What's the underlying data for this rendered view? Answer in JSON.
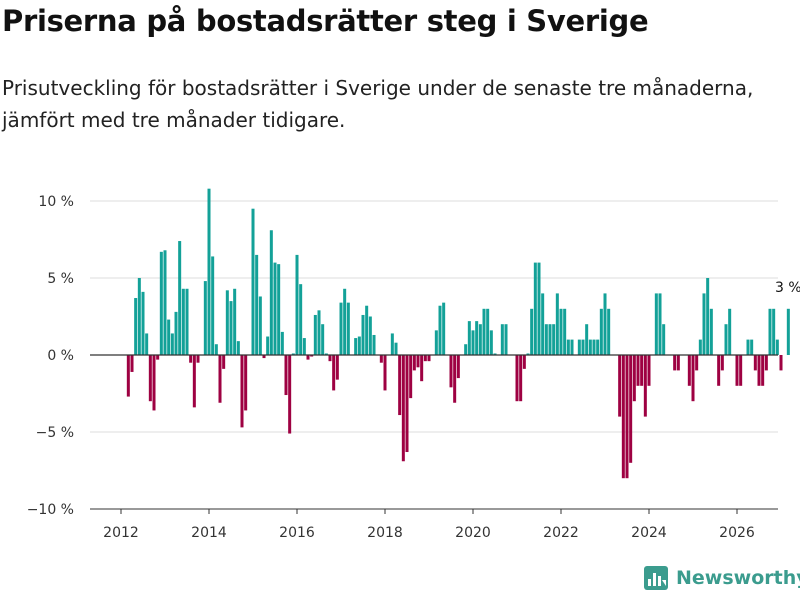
{
  "title": "Priserna på bostadsrätter steg i Sverige",
  "subtitle": "Prisutveckling för bostadsrätter i Sverige under de senaste tre månaderna, jämfört med tre månader tidigare.",
  "brand": {
    "name": "Newsworthy",
    "icon": "bar-chart-logo-icon"
  },
  "colors": {
    "positive": "#13a198",
    "negative": "#9e0142",
    "grid": "#dddddd",
    "axis": "#333333"
  },
  "chart_data": {
    "type": "bar",
    "title": "",
    "xlabel": "",
    "ylabel": "",
    "x_start": "2012-01",
    "x_step": "month",
    "ylim": [
      -10,
      11
    ],
    "y_ticks": [
      {
        "value": 10,
        "label": "10 %"
      },
      {
        "value": 5,
        "label": "5 %"
      },
      {
        "value": 0,
        "label": "0 %"
      },
      {
        "value": -5,
        "label": "−5 %"
      },
      {
        "value": -10,
        "label": "−10 %"
      }
    ],
    "x_ticks": [
      {
        "year": 2012,
        "label": "2012"
      },
      {
        "year": 2014,
        "label": "2014"
      },
      {
        "year": 2016,
        "label": "2016"
      },
      {
        "year": 2018,
        "label": "2018"
      },
      {
        "year": 2020,
        "label": "2020"
      },
      {
        "year": 2022,
        "label": "2022"
      },
      {
        "year": 2024,
        "label": "2024"
      },
      {
        "year": 2026,
        "label": "2026"
      }
    ],
    "annotation": {
      "label": "3 %",
      "target": "last"
    },
    "values": [
      null,
      null,
      -2.7,
      -1.1,
      3.7,
      5.0,
      4.1,
      1.4,
      -3.0,
      -3.6,
      -0.3,
      6.7,
      6.8,
      2.3,
      1.4,
      2.8,
      7.4,
      4.3,
      4.3,
      -0.5,
      -3.4,
      -0.5,
      0.0,
      4.8,
      10.8,
      6.4,
      0.7,
      -3.1,
      -0.9,
      4.2,
      3.5,
      4.3,
      0.9,
      -4.7,
      -3.6,
      0.0,
      9.5,
      6.5,
      3.8,
      -0.2,
      1.2,
      8.1,
      6.0,
      5.9,
      1.5,
      -2.6,
      -5.1,
      0.1,
      6.5,
      4.6,
      1.1,
      -0.3,
      -0.1,
      2.6,
      2.9,
      2.0,
      0.1,
      -0.4,
      -2.3,
      -1.6,
      3.4,
      4.3,
      3.4,
      0.0,
      1.1,
      1.2,
      2.6,
      3.2,
      2.5,
      1.3,
      0.0,
      -0.5,
      -2.3,
      0.0,
      1.4,
      0.8,
      -3.9,
      -6.9,
      -6.3,
      -2.8,
      -1.0,
      -0.8,
      -1.7,
      -0.4,
      -0.4,
      0.0,
      1.6,
      3.2,
      3.4,
      0.0,
      -2.1,
      -3.1,
      -1.5,
      0.0,
      0.7,
      2.2,
      1.6,
      2.2,
      2.0,
      3.0,
      3.0,
      1.6,
      0.1,
      0.0,
      2.0,
      2.0,
      0.0,
      0.0,
      -3.0,
      -3.0,
      -0.9,
      0.1,
      3.0,
      6.0,
      6.0,
      4.0,
      2.0,
      2.0,
      2.0,
      4.0,
      3.0,
      3.0,
      1.0,
      1.0,
      0.0,
      1.0,
      1.0,
      2.0,
      1.0,
      1.0,
      1.0,
      3.0,
      4.0,
      3.0,
      0.0,
      0.0,
      -4.0,
      -8.0,
      -8.0,
      -7.0,
      -3.0,
      -2.0,
      -2.0,
      -4.0,
      -2.0,
      0.0,
      4.0,
      4.0,
      2.0,
      0.0,
      0.0,
      -1.0,
      -1.0,
      0.0,
      0.0,
      -2.0,
      -3.0,
      -1.0,
      1.0,
      4.0,
      5.0,
      3.0,
      0.0,
      -2.0,
      -1.0,
      2.0,
      3.0,
      0.0,
      -2.0,
      -2.0,
      0.0,
      1.0,
      1.0,
      -1.0,
      -2.0,
      -2.0,
      -1.0,
      3.0,
      3.0,
      1.0,
      -1.0,
      0.0,
      3.0
    ]
  }
}
